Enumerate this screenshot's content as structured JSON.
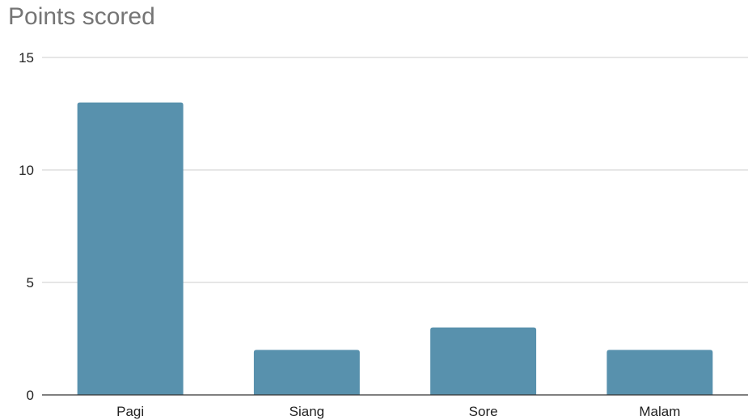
{
  "chart_data": {
    "type": "bar",
    "title": "Points scored",
    "xlabel": "",
    "ylabel": "",
    "categories": [
      "Pagi",
      "Siang",
      "Sore",
      "Malam"
    ],
    "values": [
      13,
      2,
      3,
      2
    ],
    "ylim": [
      0,
      15
    ],
    "yticks": [
      "0",
      "5",
      "10",
      "15"
    ],
    "grid": true,
    "legend": "none",
    "bar_color": "#5891ad"
  }
}
